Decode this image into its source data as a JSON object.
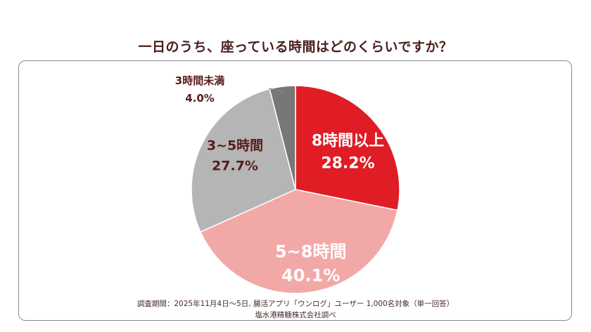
{
  "title": "一日のうち、座っている時間はどのくらいですか？",
  "chart_data": {
    "type": "pie",
    "title": "一日のうち、座っている時間はどのくらいですか？",
    "start": "12 o'clock, clockwise",
    "slices": [
      {
        "label": "8時間以上",
        "value": 28.2,
        "display": "28.2%",
        "color": "#e01c24",
        "text_color": "#ffffff",
        "label_style": "inside"
      },
      {
        "label": "5~8時間",
        "value": 40.1,
        "display": "40.1%",
        "color": "#f3a8a8",
        "text_color": "#ffffff",
        "label_style": "inside"
      },
      {
        "label": "3~5時間",
        "value": 27.7,
        "display": "27.7%",
        "color": "#b5b5b5",
        "text_color": "#5a1a1a",
        "label_style": "inside"
      },
      {
        "label": "3時間未満",
        "value": 4.0,
        "display": "4.0%",
        "color": "#777777",
        "text_color": "#5a1a1a",
        "label_style": "outside-leader"
      }
    ]
  },
  "footnote": {
    "line1": "調査期間：2025年11月4日〜5日, 腸活アプリ「ウンログ」ユーザー 1,000名対象（単一回答）",
    "line2": "塩水港精糖株式会社調べ"
  }
}
